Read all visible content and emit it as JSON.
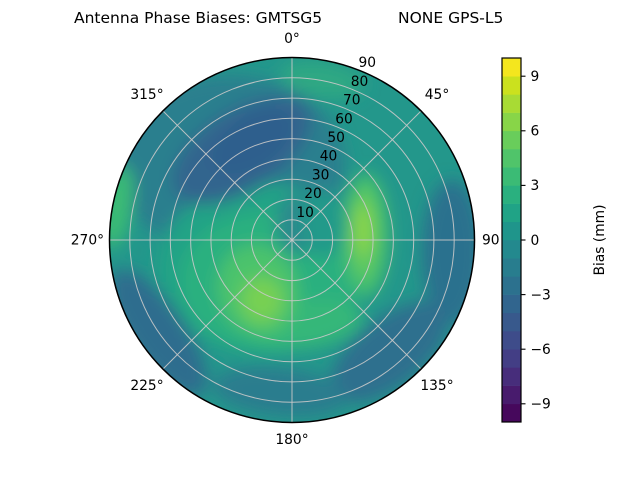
{
  "title": {
    "left": "Antenna Phase Biases: GMTSG5",
    "right": "NONE GPS-L5"
  },
  "chart_data": {
    "type": "heatmap",
    "subtype": "polar-filled-contour",
    "title": "Antenna Phase Biases: GMTSG5          NONE GPS-L5",
    "antenna": "GMTSG5",
    "dome": "NONE",
    "signal": "GPS-L5",
    "colormap": "viridis",
    "grid": true,
    "angular_ticks": [
      "0°",
      "45°",
      "90",
      "135°",
      "180°",
      "225°",
      "270°",
      "315°"
    ],
    "radial_ticks": [
      "10",
      "20",
      "30",
      "40",
      "50",
      "60",
      "70",
      "80",
      "90"
    ],
    "radial_range": [
      0,
      90
    ],
    "colorbar": {
      "label": "Bias (mm)",
      "range": [
        -10,
        10
      ],
      "ticks": [
        9,
        6,
        3,
        0,
        -3,
        -6,
        -9
      ],
      "tick_labels": [
        "9",
        "6",
        "3",
        "0",
        "−3",
        "−6",
        "−9"
      ],
      "n_bands": 20,
      "band_step_mm": 1,
      "band_colors_bottom_to_top": [
        "#46085c",
        "#481b6d",
        "#472d7b",
        "#433e85",
        "#3e4c8a",
        "#38598c",
        "#31658e",
        "#2c718e",
        "#287d8e",
        "#23898e",
        "#1f958b",
        "#20a386",
        "#2ab07f",
        "#3bbb75",
        "#50c46a",
        "#69cd5b",
        "#88d548",
        "#a8db34",
        "#cbe11e",
        "#f4e61e"
      ]
    },
    "field_colors": {
      "base": "#23978b",
      "wash_ul": "#2a7f8e",
      "wash_green": "#20a386",
      "dark_ul": "#31658e",
      "dark_ul_core": "#2f5f8d",
      "dark_right": "#2c718e",
      "dark_br": "#2e6f8e",
      "dark_bl": "#2e6d8e",
      "dark_bottom": "#2c7d8e",
      "halo_green": "#2ab07f",
      "arm_bottom": "#35b779",
      "crescent": "#4cc36c",
      "crescent_core": "#77d053",
      "strip": "#44bf70",
      "strip_mid": "#62ca5e",
      "strip_core": "#8ed645",
      "rim_left_green": "#3bbb75",
      "rim_top_green": "#2fa883",
      "center_teal": "#2b8a8d",
      "center_right_teal": "#249a8a"
    },
    "features": [
      {
        "azimuth_deg": 330,
        "zenith_deg": 55,
        "bias_mm": -3.5,
        "note": "dark blue lobe upper-left"
      },
      {
        "azimuth_deg": 95,
        "zenith_deg": 30,
        "bias_mm": 7,
        "note": "bright green-yellow strip right of center"
      },
      {
        "azimuth_deg": 215,
        "zenith_deg": 30,
        "bias_mm": 5,
        "note": "bright green crescent lower-left of center"
      },
      {
        "azimuth_deg": 180,
        "zenith_deg": 42,
        "bias_mm": 3,
        "note": "green arm bottom-center"
      },
      {
        "azimuth_deg": 90,
        "zenith_deg": 80,
        "bias_mm": -2,
        "note": "dark rim at right edge"
      },
      {
        "azimuth_deg": 140,
        "zenith_deg": 75,
        "bias_mm": -2,
        "note": "dark rim bottom-right"
      },
      {
        "azimuth_deg": 235,
        "zenith_deg": 80,
        "bias_mm": -2,
        "note": "dark rim bottom-left"
      },
      {
        "azimuth_deg": 282,
        "zenith_deg": 88,
        "bias_mm": 3,
        "note": "green patch on left rim"
      },
      {
        "azimuth_deg": 0,
        "zenith_deg": 8,
        "bias_mm": 0,
        "note": "teal patch at center"
      },
      {
        "azimuth_deg": 15,
        "zenith_deg": 80,
        "bias_mm": 1,
        "note": "slight green at top rim"
      }
    ]
  }
}
